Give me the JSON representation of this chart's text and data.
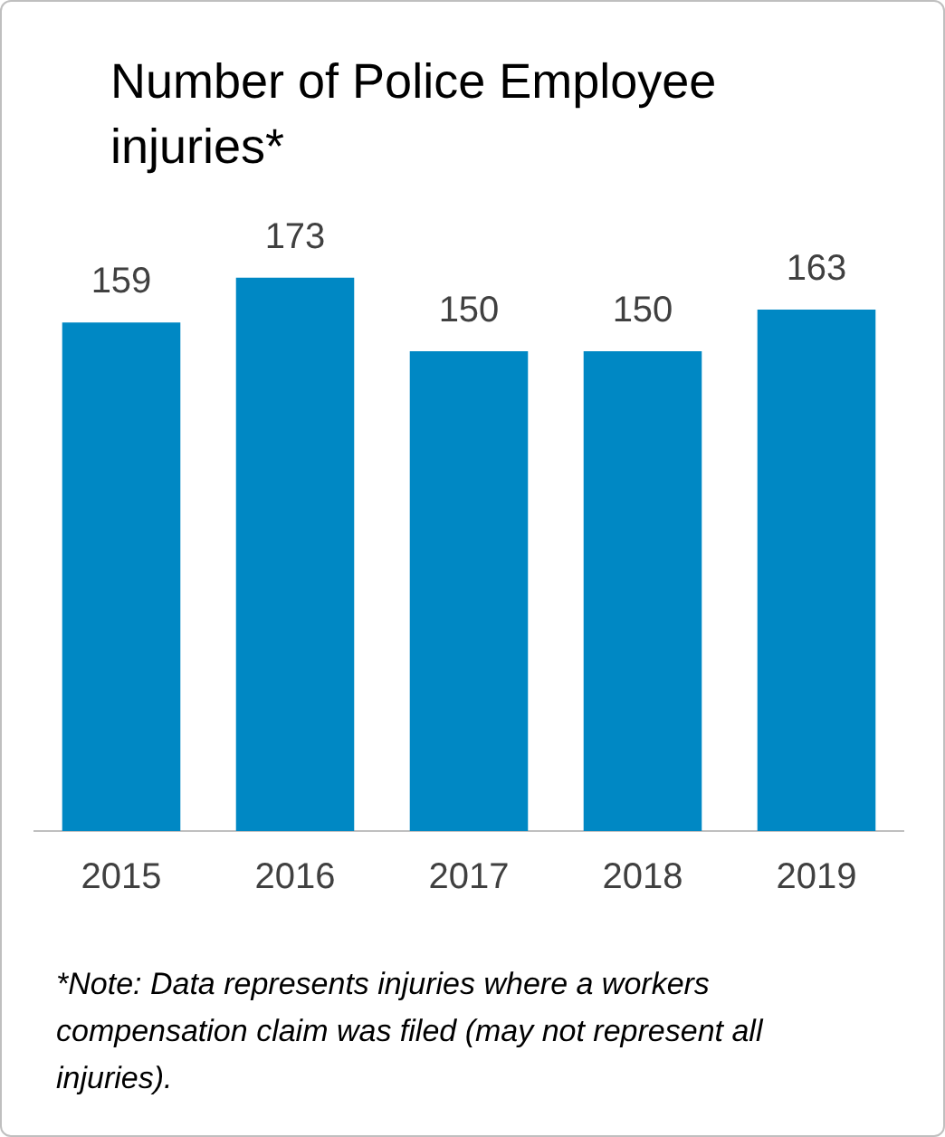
{
  "chart_data": {
    "type": "bar",
    "title": "Number of Police Employee injuries*",
    "categories": [
      "2015",
      "2016",
      "2017",
      "2018",
      "2019"
    ],
    "values": [
      159,
      173,
      150,
      150,
      163
    ],
    "color": "#0088c4",
    "tick_labels": "x",
    "data_labels": true,
    "grid": false,
    "legend": false,
    "annotations": [
      "*Note: Data represents injuries where a workers compensation claim was filed (may not represent all injuries)."
    ]
  }
}
